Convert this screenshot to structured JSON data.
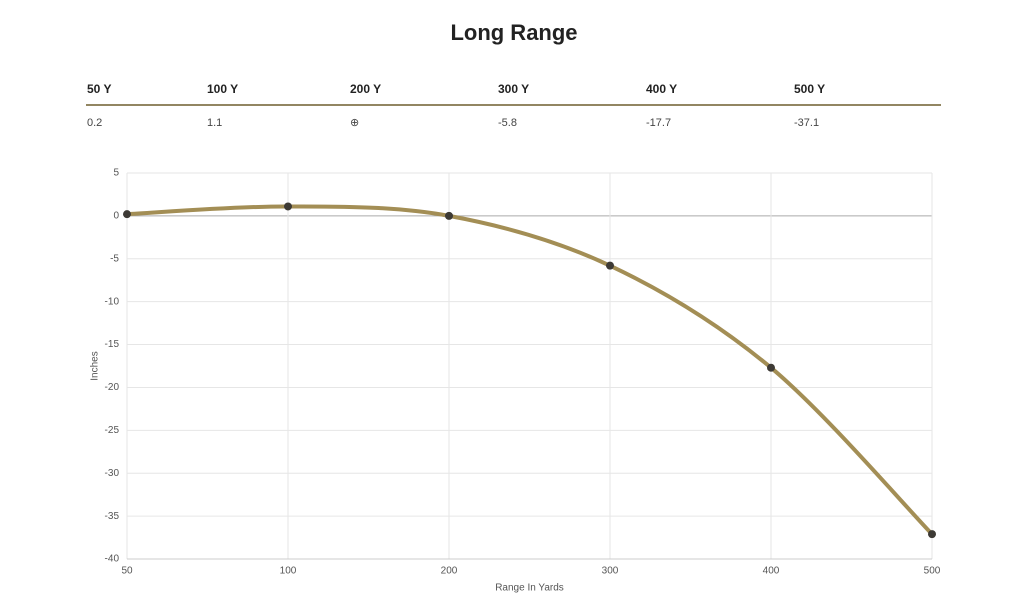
{
  "table": {
    "headers": [
      "50 Y",
      "100 Y",
      "200 Y",
      "300 Y",
      "400 Y",
      "500 Y"
    ],
    "rows": [
      [
        "0.2",
        "1.1",
        "⊕",
        "-5.8",
        "-17.7",
        "-37.1"
      ]
    ]
  },
  "chart_data": {
    "type": "line",
    "title": "Long Range",
    "categories": [
      "50",
      "100",
      "200",
      "300",
      "400",
      "500"
    ],
    "values": [
      0.2,
      1.1,
      0,
      -5.8,
      -17.7,
      -37.1
    ],
    "color": "#a38e55",
    "point_color": "#3d3a35",
    "ylim": [
      -40,
      5
    ],
    "yticks": [
      -40,
      -35,
      -30,
      -25,
      -20,
      -15,
      -10,
      -5,
      0,
      5
    ],
    "x_label": "Range In Yards",
    "y_label": "Inches",
    "grid": true
  }
}
